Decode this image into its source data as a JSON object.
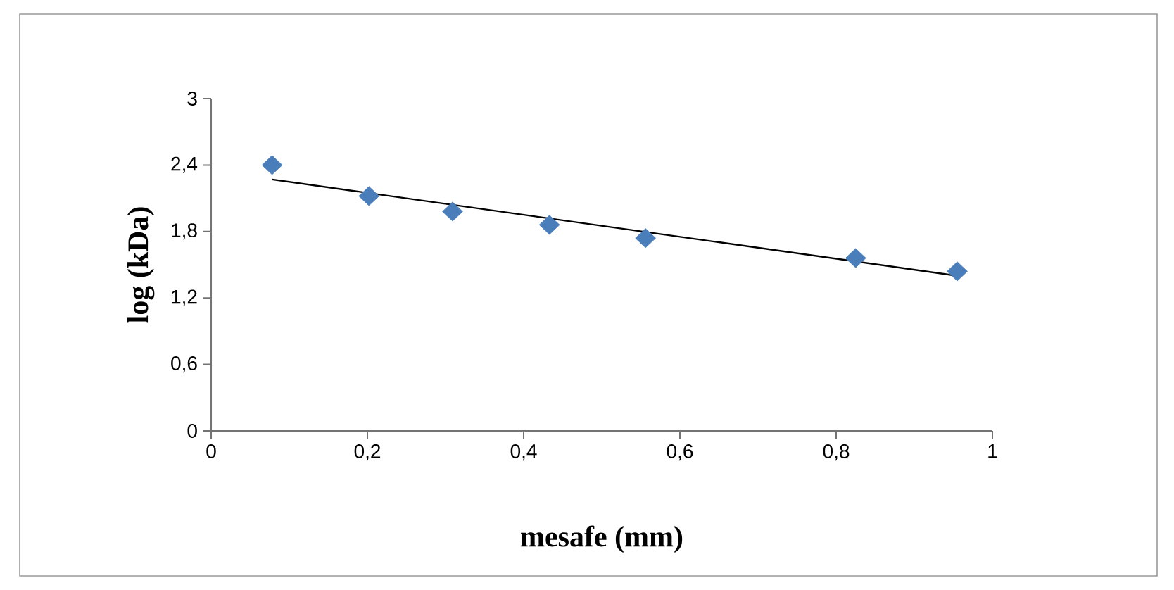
{
  "chart_data": {
    "type": "scatter",
    "xlabel": "mesafe (mm)",
    "ylabel": "log (kDa)",
    "series": [
      {
        "color": "#4a7ebb",
        "marker": "diamond",
        "x": [
          0.078,
          0.202,
          0.309,
          0.433,
          0.556,
          0.825,
          0.955
        ],
        "values": [
          2.4,
          2.12,
          1.98,
          1.86,
          1.74,
          1.56,
          1.44
        ]
      },
      {
        "type": "line",
        "color": "#000000",
        "marker": "none",
        "x": [
          0.078,
          0.955
        ],
        "values": [
          2.27,
          1.4
        ]
      }
    ],
    "xlim": [
      0,
      1
    ],
    "ylim": [
      0,
      3
    ],
    "xticks": [
      0,
      {
        "value": 0.2,
        "label": "0,2"
      },
      {
        "value": 0.4,
        "label": "0,4"
      },
      {
        "value": 0.6,
        "label": "0,6"
      },
      {
        "value": 0.8,
        "label": "0,8"
      },
      1
    ],
    "yticks": [
      0,
      {
        "value": 0.6,
        "label": "0,6"
      },
      {
        "value": 1.2,
        "label": "1,2"
      },
      {
        "value": 1.8,
        "label": "1,8"
      },
      {
        "value": 2.4,
        "label": "2,4"
      },
      3
    ],
    "grid": false
  }
}
